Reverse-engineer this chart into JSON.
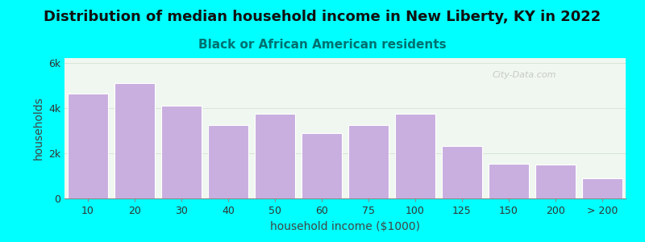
{
  "title": "Distribution of median household income in New Liberty, KY in 2022",
  "subtitle": "Black or African American residents",
  "xlabel": "household income ($1000)",
  "ylabel": "households",
  "background_outer": "#00FFFF",
  "background_inner": "#f0f7f0",
  "bar_color": "#c9aee0",
  "bar_edge_color": "#ffffff",
  "categories": [
    "10",
    "20",
    "30",
    "40",
    "50",
    "60",
    "75",
    "100",
    "125",
    "150",
    "200",
    "> 200"
  ],
  "values": [
    4650,
    5100,
    4100,
    3250,
    3750,
    2900,
    3250,
    3750,
    2300,
    1550,
    1500,
    900
  ],
  "ylim": [
    0,
    6200
  ],
  "yticks": [
    0,
    2000,
    4000,
    6000
  ],
  "ytick_labels": [
    "0",
    "2k",
    "4k",
    "6k"
  ],
  "title_fontsize": 13,
  "subtitle_fontsize": 11,
  "axis_label_fontsize": 10,
  "tick_fontsize": 9,
  "watermark": "City-Data.com",
  "title_color": "#111111",
  "subtitle_color": "#007070",
  "axis_label_color": "#444444"
}
